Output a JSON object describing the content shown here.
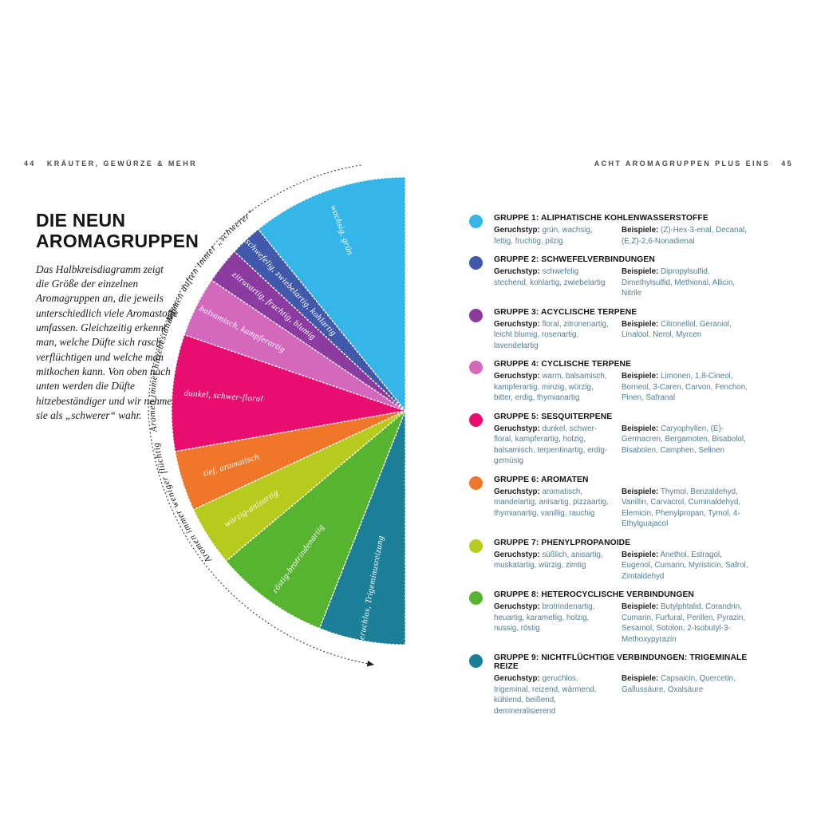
{
  "page_header": {
    "left_page_number": "44",
    "left_title": "KRÄUTER, GEWÜRZE & MEHR",
    "right_title": "ACHT AROMAGRUPPEN PLUS EINS",
    "right_page_number": "45"
  },
  "intro": {
    "title_line1": "DIE NEUN",
    "title_line2": "AROMAGRUPPEN",
    "body": "Das Halbkreisdiagramm zeigt die Größe der einzelnen Aromagruppen an, die jeweils unterschiedlich viele Aromastoffe umfassen. Gleichzeitig erkennt man, welche Düfte sich rasch verflüchtigen und welche man mitkochen kann. Von oben nach unten werden die Düfte hitzebeständiger und wir nehmen sie als „schwerer“ wahr."
  },
  "chart_data": {
    "type": "pie",
    "shape": "semicircle-fan",
    "angle_unit": "degrees",
    "total_deg": 180,
    "slices": [
      {
        "group": 1,
        "label": "wachsig, grün",
        "color": "#35b6e8",
        "start_deg": 0,
        "end_deg": 39
      },
      {
        "group": 2,
        "label": "schwefelig, zwiebelartig, kohlartig",
        "color": "#4159ab",
        "start_deg": 39,
        "end_deg": 47
      },
      {
        "group": 3,
        "label": "zitrusartig, fruchtig, blumig",
        "color": "#8c3ba0",
        "start_deg": 47,
        "end_deg": 56
      },
      {
        "group": 4,
        "label": "balsamisch, kampferartig",
        "color": "#d468bd",
        "start_deg": 56,
        "end_deg": 71
      },
      {
        "group": 5,
        "label": "dunkel, schwer-floral",
        "color": "#e80d6f",
        "start_deg": 71,
        "end_deg": 100
      },
      {
        "group": 6,
        "label": "tief, aromatisch",
        "color": "#f07629",
        "start_deg": 100,
        "end_deg": 115
      },
      {
        "group": 7,
        "label": "würzig-anisartig",
        "color": "#b7cb1e",
        "start_deg": 115,
        "end_deg": 130
      },
      {
        "group": 8,
        "label": "röstig-brotrindenartig",
        "color": "#57b430",
        "start_deg": 130,
        "end_deg": 158.5
      },
      {
        "group": 9,
        "label": "geruchlos, Trigeminusreizung",
        "color": "#1b7f97",
        "start_deg": 158.5,
        "end_deg": 180
      }
    ],
    "arc_annotations": [
      {
        "text": "Aromen immer weniger flüchtig",
        "offset_pct": 27
      },
      {
        "text": "Aromen immer hitzebeständiger",
        "offset_pct": 47.5
      },
      {
        "text": "Aromen duften immer „schwerer“",
        "offset_pct": 63.5
      }
    ]
  },
  "legend": {
    "labels": {
      "type": "Geruchstyp:",
      "examples": "Beispiele:"
    },
    "groups": [
      {
        "name": "GRUPPE 1: ALIPHATISCHE KOHLENWASSERSTOFFE",
        "type_text": "grün, wachsig, fettig, fruchtig, pilzig",
        "examples_text": "(Z)-Hex-3-enal, Decanal, (E,Z)-2,6-Nonadienal"
      },
      {
        "name": "GRUPPE 2: SCHWEFELVERBINDUNGEN",
        "type_text": "schwefelig stechend, kohlartig, zwiebelartig",
        "examples_text": "Dipropylsulfid, Dimethylsulfid, Methional, Allicin, Nitrile"
      },
      {
        "name": "GRUPPE 3: ACYCLISCHE TERPENE",
        "type_text": "floral, zitronenartig, leicht blumig, rosenartig, lavendelartig",
        "examples_text": "Citronellol, Geraniol, Linalool, Nerol, Myrcen"
      },
      {
        "name": "GRUPPE 4: CYCLISCHE TERPENE",
        "type_text": "warm, balsamisch, kampferartig, minzig, würzig, bitter, erdig, thymianartig",
        "examples_text": "Limonen, 1,8-Cineol, Borneol, 3-Caren, Carvon, Fenchon, Pinen, Safranal"
      },
      {
        "name": "GRUPPE 5: SESQUITERPENE",
        "type_text": "dunkel, schwer-floral, kampferartig, holzig, balsamisch, terpentinartig, erdig-gemüsig",
        "examples_text": "Caryophyllen, (E)-Germacren, Bergamoten, Bisabolol, Bisabolen, Camphen, Selinen"
      },
      {
        "name": "GRUPPE 6: AROMATEN",
        "type_text": "aromatisch, mandelartig, anisartig, pizzaartig, thymianartig, vanillig, rauchig",
        "examples_text": "Thymol, Benzaldehyd, Vanillin, Carvacrol, Cuminaldehyd, Elemicin, Phenylpropan, Tymol, 4-Ethylguajacol"
      },
      {
        "name": "GRUPPE 7: PHENYLPROPANOIDE",
        "type_text": "süßlich, anisartig, muskatartig, würzig, zimtig",
        "examples_text": "Anethol, Estragol, Eugenol, Cumarin, Myristicin, Safrol, Zimtaldehyd"
      },
      {
        "name": "GRUPPE 8: HETEROCYCLISCHE VERBINDUNGEN",
        "type_text": "brotrindenartig, heuartig, karamellig, holzig, nussig, röstig",
        "examples_text": "Butylphtalid, Corandrin, Cumarin, Furfural, Perillen, Pyrazin, Sesamol, Sotolon, 2-Isobutyl-3-Methoxypyrazin"
      },
      {
        "name": "GRUPPE 9: NICHTFLÜCHTIGE VERBINDUNGEN: TRIGEMINALE REIZE",
        "type_text": "geruchlos, trigeminal, reizend, wärmend, kühlend, beißend, demineralisierend",
        "examples_text": "Capsaicin, Quercetin, Gallussäure, Oxalsäure"
      }
    ]
  }
}
